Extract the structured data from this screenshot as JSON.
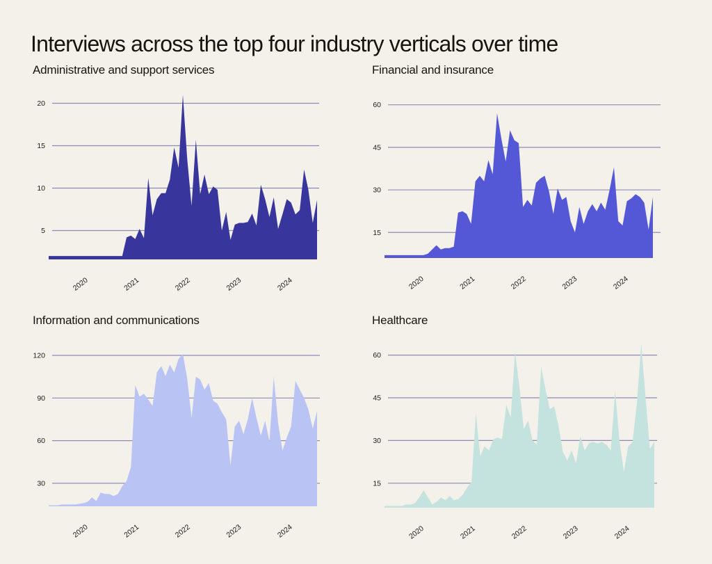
{
  "page": {
    "title": "Interviews across the top four industry verticals over time",
    "background_color": "#f4f1ea",
    "text_color": "#17140f",
    "gridline_color": "#8d8ab6"
  },
  "chart_data": [
    {
      "type": "area",
      "title": "Administrative and support services",
      "color": "#38359c",
      "x_ticks": [
        "2020",
        "2021",
        "2022",
        "2023",
        "2024"
      ],
      "x_domain": [
        2019.35,
        2024.6
      ],
      "y_ticks": [
        5,
        10,
        15,
        20
      ],
      "y_min": 1.6,
      "y_max": 22.5,
      "values": [
        2,
        2,
        2,
        2,
        2,
        2,
        2,
        2,
        2,
        2,
        2,
        2,
        2,
        2,
        2,
        2,
        2,
        2,
        4.2,
        4.4,
        4.0,
        5.2,
        4.1,
        11.2,
        6.8,
        8.7,
        9.4,
        9.4,
        11.0,
        14.8,
        12.4,
        21.0,
        13.5,
        7.9,
        15.7,
        9.3,
        11.6,
        9.3,
        10.2,
        9.8,
        5.0,
        7.2,
        3.9,
        5.7,
        5.9,
        5.9,
        6.0,
        7.0,
        5.6,
        10.4,
        8.7,
        6.6,
        8.9,
        5.2,
        6.9,
        8.7,
        8.3,
        6.9,
        7.4,
        12.2,
        9.8,
        5.9,
        8.6
      ]
    },
    {
      "type": "area",
      "title": "Financial and insurance",
      "color": "#5457d6",
      "x_ticks": [
        "2020",
        "2021",
        "2022",
        "2023",
        "2024"
      ],
      "x_domain": [
        2019.35,
        2024.6
      ],
      "y_ticks": [
        15,
        30,
        45,
        60
      ],
      "y_min": 6.0,
      "y_max": 62,
      "values": [
        7,
        7,
        7,
        7,
        7,
        7,
        7,
        7,
        7,
        7,
        7.5,
        9,
        10.5,
        9,
        9.5,
        9.5,
        10,
        22,
        22.5,
        21.5,
        18,
        33,
        35,
        33,
        40.5,
        35.5,
        57,
        48,
        40,
        51,
        47.5,
        46.5,
        24,
        26.5,
        24.5,
        32.5,
        34,
        35,
        29.5,
        21.5,
        30.5,
        26.5,
        27.5,
        19,
        15,
        24,
        18,
        22.5,
        25,
        22.5,
        25.5,
        23,
        30,
        38,
        19,
        17.5,
        26,
        27,
        28.5,
        27.5,
        25.5,
        16,
        27.5
      ]
    },
    {
      "type": "area",
      "title": "Information and communications",
      "color": "#bac4f4",
      "x_ticks": [
        "2020",
        "2021",
        "2022",
        "2023",
        "2024"
      ],
      "x_domain": [
        2019.35,
        2024.6
      ],
      "y_ticks": [
        30,
        60,
        90,
        120
      ],
      "y_min": 13.8,
      "y_max": 124,
      "values": [
        14.5,
        14.5,
        14.5,
        15,
        15,
        15,
        15,
        15.5,
        16,
        17,
        20,
        17.5,
        23.5,
        22.5,
        22.5,
        21,
        22.5,
        28,
        31.5,
        41.5,
        99,
        91,
        93,
        89,
        84.5,
        108,
        112.5,
        105.5,
        113.5,
        108,
        117.5,
        121,
        104,
        76,
        105,
        103,
        96,
        100.5,
        88,
        86,
        80,
        75,
        42.5,
        70,
        74,
        64.5,
        75,
        90,
        76,
        63.5,
        74,
        59.5,
        105,
        72.5,
        53,
        62,
        70,
        102,
        96,
        90,
        82,
        68.5,
        81
      ]
    },
    {
      "type": "area",
      "title": "Healthcare",
      "color": "#c4e2de",
      "x_ticks": [
        "2020",
        "2021",
        "2022",
        "2023",
        "2024"
      ],
      "x_domain": [
        2019.35,
        2024.6
      ],
      "y_ticks": [
        15,
        30,
        45,
        60
      ],
      "y_min": 6.4,
      "y_max": 65,
      "values": [
        7,
        7,
        7,
        7,
        7,
        7.5,
        7.5,
        8,
        10,
        12.5,
        10,
        7.5,
        8.5,
        10,
        9,
        10.5,
        9,
        9.5,
        11,
        13.5,
        15.5,
        39.5,
        24.5,
        28,
        26.5,
        30.5,
        31,
        30.5,
        42.5,
        38,
        61,
        49,
        34,
        37,
        30,
        28.5,
        56,
        48,
        41,
        42,
        35,
        26,
        23,
        26.5,
        22,
        31.5,
        26.5,
        29,
        29.5,
        29,
        29.5,
        28.5,
        26.5,
        47.5,
        30,
        19,
        28,
        29.5,
        43,
        64,
        45,
        27,
        29.5
      ]
    }
  ]
}
